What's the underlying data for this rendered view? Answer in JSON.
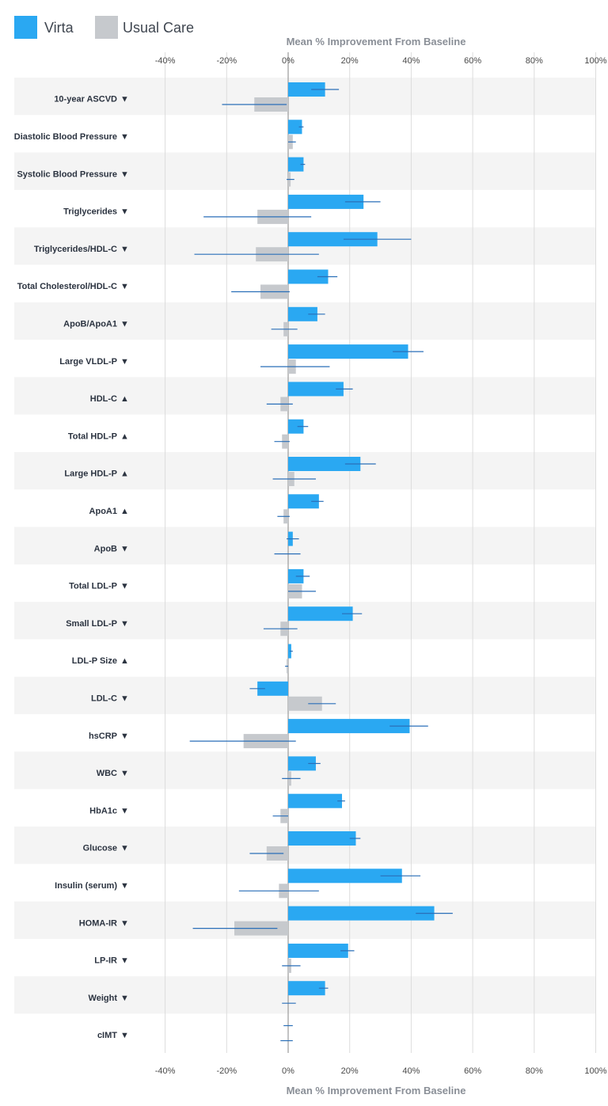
{
  "chart_data": {
    "type": "bar",
    "orientation": "horizontal",
    "title": "",
    "xlabel": "Mean % Improvement From Baseline",
    "ylabel": "",
    "xlim": [
      -40,
      100
    ],
    "x_ticks": [
      "-40%",
      "-20%",
      "0%",
      "20%",
      "40%",
      "60%",
      "80%",
      "100%"
    ],
    "x_tick_values": [
      -40,
      -20,
      0,
      20,
      40,
      60,
      80,
      100
    ],
    "grid": true,
    "legend_position": "top-left",
    "categories": [
      "10-year ASCVD",
      "Diastolic Blood Pressure",
      "Systolic Blood Pressure",
      "Triglycerides",
      "Triglycerides/HDL-C",
      "Total Cholesterol/HDL-C",
      "ApoB/ApoA1",
      "Large VLDL-P",
      "HDL-C",
      "Total HDL-P",
      "Large HDL-P",
      "ApoA1",
      "ApoB",
      "Total LDL-P",
      "Small LDL-P",
      "LDL-P Size",
      "LDL-C",
      "hsCRP",
      "WBC",
      "HbA1c",
      "Glucose",
      "Insulin (serum)",
      "HOMA-IR",
      "LP-IR",
      "Weight",
      "cIMT"
    ],
    "direction_arrows": [
      "▼",
      "▼",
      "▼",
      "▼",
      "▼",
      "▼",
      "▼",
      "▼",
      "▲",
      "▲",
      "▲",
      "▲",
      "▼",
      "▼",
      "▼",
      "▲",
      "▼",
      "▼",
      "▼",
      "▼",
      "▼",
      "▼",
      "▼",
      "▼",
      "▼",
      "▼"
    ],
    "series": [
      {
        "name": "Virta",
        "color": "#2aa8f2",
        "values": [
          12,
          4.5,
          5,
          24.5,
          29,
          13,
          9.5,
          39,
          18,
          5,
          23.5,
          10,
          1.5,
          5,
          21,
          1,
          -10,
          39.5,
          9,
          17.5,
          22,
          37,
          47.5,
          19.5,
          12,
          0
        ],
        "error": [
          [
            7.5,
            16.5
          ],
          [
            3.5,
            5
          ],
          [
            4,
            5.5
          ],
          [
            18.5,
            30
          ],
          [
            18,
            40
          ],
          [
            9.5,
            16
          ],
          [
            6.5,
            12
          ],
          [
            34,
            44
          ],
          [
            15.5,
            21
          ],
          [
            3,
            6.5
          ],
          [
            18.5,
            28.5
          ],
          [
            7.5,
            11.5
          ],
          [
            -0.5,
            3.5
          ],
          [
            2.5,
            7
          ],
          [
            17.5,
            24
          ],
          [
            0.5,
            1.5
          ],
          [
            -12.5,
            -7.5
          ],
          [
            33,
            45.5
          ],
          [
            6.5,
            10.5
          ],
          [
            16,
            18.5
          ],
          [
            20,
            23.5
          ],
          [
            30,
            43
          ],
          [
            41.5,
            53.5
          ],
          [
            17,
            21.5
          ],
          [
            10,
            13
          ],
          [
            -1.5,
            1.5
          ]
        ]
      },
      {
        "name": "Usual Care",
        "color": "#c6c9cd",
        "values": [
          -11,
          1.5,
          0.8,
          -10,
          -10.5,
          -9,
          -1.5,
          2.5,
          -2.5,
          -2,
          2,
          -1.5,
          0,
          4.5,
          -2.5,
          -0.5,
          11,
          -14.5,
          1,
          -2.5,
          -7,
          -3,
          -17.5,
          1,
          0,
          -0.3
        ],
        "error": [
          [
            -21.5,
            -0.5
          ],
          [
            0,
            2.5
          ],
          [
            -0.5,
            2
          ],
          [
            -27.5,
            7.5
          ],
          [
            -30.5,
            10
          ],
          [
            -18.5,
            0.5
          ],
          [
            -5.5,
            3
          ],
          [
            -9,
            13.5
          ],
          [
            -7,
            1.5
          ],
          [
            -4.5,
            0.5
          ],
          [
            -5,
            9
          ],
          [
            -3.5,
            0.5
          ],
          [
            -4.5,
            4
          ],
          [
            0,
            9
          ],
          [
            -8,
            3
          ],
          [
            -1,
            0
          ],
          [
            6.5,
            15.5
          ],
          [
            -32,
            2.5
          ],
          [
            -2,
            4
          ],
          [
            -5,
            0
          ],
          [
            -12.5,
            -1.5
          ],
          [
            -16,
            10
          ],
          [
            -31,
            -3.5
          ],
          [
            -2,
            4
          ],
          [
            -2,
            2.5
          ],
          [
            -2.5,
            1.5
          ]
        ]
      }
    ]
  }
}
